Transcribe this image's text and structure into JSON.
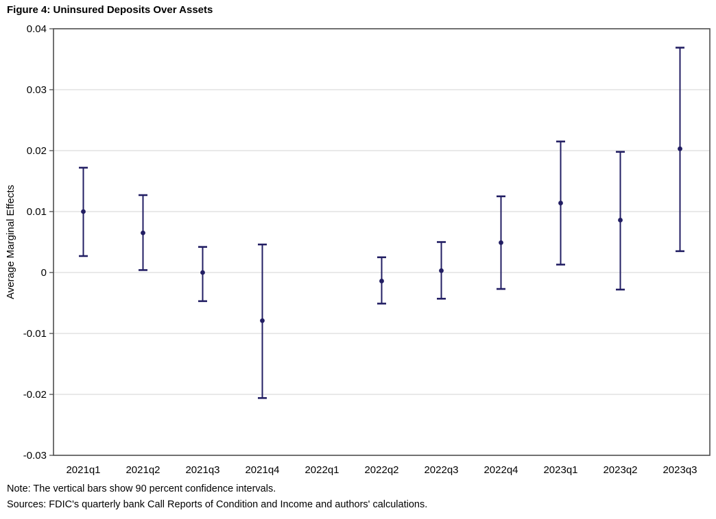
{
  "figure_title": "Figure 4: Uninsured Deposits Over Assets",
  "notes": {
    "note": "Note: The vertical bars show 90 percent confidence intervals.",
    "sources": "Sources: FDIC's quarterly bank Call Reports of Condition and Income and authors' calculations."
  },
  "chart_data": {
    "type": "scatter",
    "subtype": "point-estimates-with-error-bars",
    "title": "Figure 4: Uninsured Deposits Over Assets",
    "xlabel": "",
    "ylabel": "Average Marginal Effects",
    "ylim": [
      -0.03,
      0.04
    ],
    "grid": true,
    "legend_position": "none",
    "confidence_level_percent": 90,
    "y_ticks": [
      0.04,
      0.03,
      0.02,
      0.01,
      0,
      -0.01,
      -0.02,
      -0.03
    ],
    "y_tick_labels": [
      "0.04",
      "0.03",
      "0.02",
      "0.01",
      "0",
      "-0.01",
      "-0.02",
      "-0.03"
    ],
    "categories": [
      "2021q1",
      "2021q2",
      "2021q3",
      "2021q4",
      "2022q1",
      "2022q2",
      "2022q3",
      "2022q4",
      "2023q1",
      "2023q2",
      "2023q3"
    ],
    "series": [
      {
        "name": "Average Marginal Effects",
        "values": [
          0.01,
          0.0065,
          0.0,
          -0.0079,
          null,
          -0.0014,
          0.0003,
          0.0049,
          0.0114,
          0.0086,
          0.0203
        ],
        "ci_low": [
          0.0027,
          0.0004,
          -0.0047,
          -0.0206,
          null,
          -0.0051,
          -0.0043,
          -0.0027,
          0.0013,
          -0.0028,
          0.0035
        ],
        "ci_high": [
          0.0172,
          0.0127,
          0.0042,
          0.0046,
          null,
          0.0025,
          0.005,
          0.0125,
          0.0215,
          0.0198,
          0.0369
        ]
      }
    ],
    "colors": {
      "marker": "#221e63",
      "error_bar": "#221e63",
      "gridline": "#dcdcdc",
      "plot_border": "#4d4d4d",
      "text": "#000000"
    }
  }
}
